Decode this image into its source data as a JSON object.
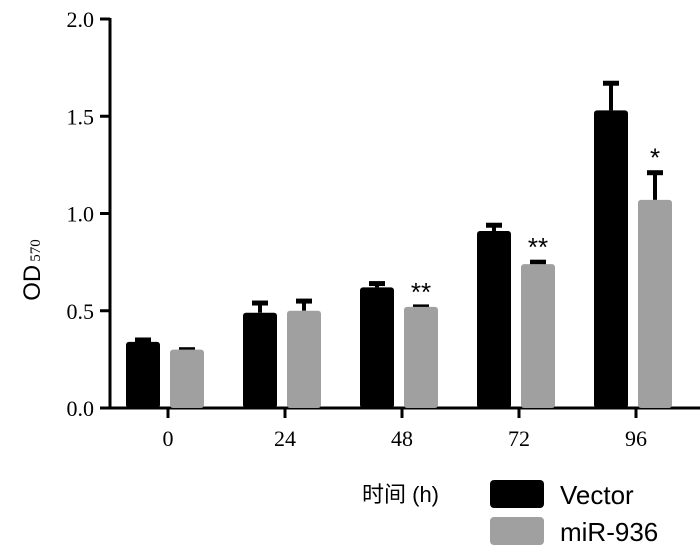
{
  "chart_data": {
    "type": "bar",
    "title": "",
    "xlabel": "时间 (h)",
    "ylabel": "OD",
    "ylabel_sub": "570",
    "ylim": [
      0,
      2.0
    ],
    "yticks": [
      "0.0",
      "0.5",
      "1.0",
      "1.5",
      "2.0"
    ],
    "categories": [
      "0",
      "24",
      "48",
      "72",
      "96"
    ],
    "series": [
      {
        "name": "Vector",
        "color": "#000000",
        "values": [
          0.34,
          0.49,
          0.62,
          0.91,
          1.53
        ],
        "errors": [
          0.02,
          0.06,
          0.03,
          0.04,
          0.15
        ],
        "annotations": [
          "",
          "",
          "",
          "",
          ""
        ]
      },
      {
        "name": "miR-936",
        "color": "#a0a0a0",
        "values": [
          0.3,
          0.5,
          0.52,
          0.74,
          1.07
        ],
        "errors": [
          0.01,
          0.06,
          0.01,
          0.02,
          0.15
        ],
        "annotations": [
          "",
          "",
          "**",
          "**",
          "*"
        ]
      }
    ],
    "legend": "bottom-right",
    "grid": false
  }
}
